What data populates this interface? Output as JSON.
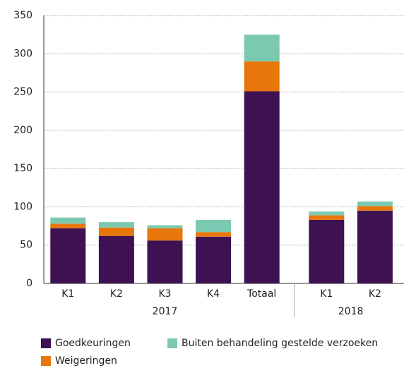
{
  "chart_data": {
    "type": "stacked-bar",
    "groups": [
      {
        "name": "2017",
        "categories": [
          "K1",
          "K2",
          "K3",
          "K4",
          "Totaal"
        ]
      },
      {
        "name": "2018",
        "categories": [
          "K1",
          "K2"
        ]
      }
    ],
    "series": [
      {
        "name": "Goedkeuringen",
        "color": "#3d1152",
        "values": [
          72,
          62,
          56,
          61,
          251,
          83,
          95
        ]
      },
      {
        "name": "Weigeringen",
        "color": "#e8760a",
        "values": [
          6,
          11,
          16,
          6,
          39,
          6,
          6
        ]
      },
      {
        "name": "Buiten behandeling gestelde verzoeken",
        "color": "#7ac9b0",
        "values": [
          8,
          7,
          4,
          16,
          35,
          5,
          6
        ]
      }
    ],
    "ylim": [
      0,
      350
    ],
    "yticks": [
      0,
      50,
      100,
      150,
      200,
      250,
      300,
      350
    ],
    "grid": true
  }
}
